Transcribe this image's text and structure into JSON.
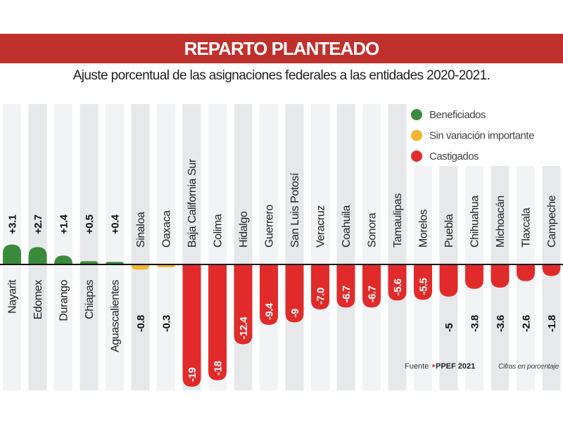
{
  "header": {
    "title": "REPARTO PLANTEADO",
    "subtitle": "Ajuste porcentual de las asignaciones federales a las entidades 2020-2021."
  },
  "colors": {
    "beneficiados": "#3a8a3c",
    "sin_variacion": "#f2b632",
    "castigados": "#e12b2b",
    "title_band": "#c0302c"
  },
  "footer": {
    "source_label": "Fuente",
    "source_value": "PPEF 2021",
    "note": "Cifras en porcentaje"
  },
  "chart_data": {
    "type": "bar",
    "title": "REPARTO PLANTEADO",
    "subtitle": "Ajuste porcentual de las asignaciones federales a las entidades 2020-2021.",
    "categories": [
      "Nayarit",
      "Edomex",
      "Durango",
      "Chiapas",
      "Aguascalientes",
      "Sinaloa",
      "Oaxaca",
      "Baja California Sur",
      "Colima",
      "Hidalgo",
      "Guerrero",
      "San Luis Potosí",
      "Veracruz",
      "Coahuila",
      "Sonora",
      "Tamaulipas",
      "Morelos",
      "Puebla",
      "Chihuahua",
      "Michoacán",
      "Tlaxcala",
      "Campeche"
    ],
    "values": [
      3.1,
      2.7,
      1.4,
      0.5,
      0.4,
      -0.8,
      -0.3,
      -19,
      -18,
      -12.4,
      -9.4,
      -9,
      -7.0,
      -6.7,
      -6.7,
      -5.6,
      -5.5,
      -5,
      -3.8,
      -3.6,
      -2.6,
      -1.8
    ],
    "value_labels": [
      "+3.1",
      "+2.7",
      "+1.4",
      "+0.5",
      "+0.4",
      "-0.8",
      "-0.3",
      "-19",
      "-18",
      "-12.4",
      "-9.4",
      "-9",
      "-7.0",
      "-6.7",
      "-6.7",
      "-5.6",
      "-5.5",
      "-5",
      "-3.8",
      "-3.6",
      "-2.6",
      "-1.8"
    ],
    "groups": [
      "beneficiados",
      "beneficiados",
      "beneficiados",
      "beneficiados",
      "beneficiados",
      "sin_variacion",
      "sin_variacion",
      "castigados",
      "castigados",
      "castigados",
      "castigados",
      "castigados",
      "castigados",
      "castigados",
      "castigados",
      "castigados",
      "castigados",
      "castigados",
      "castigados",
      "castigados",
      "castigados",
      "castigados"
    ],
    "legend": [
      {
        "key": "beneficiados",
        "label": "Beneficiados"
      },
      {
        "key": "sin_variacion",
        "label": "Sin variación importante"
      },
      {
        "key": "castigados",
        "label": "Castigados"
      }
    ],
    "legend_position": "top-right",
    "ylim": [
      -19,
      3.1
    ],
    "xlabel": "",
    "ylabel": "",
    "grid": false
  }
}
